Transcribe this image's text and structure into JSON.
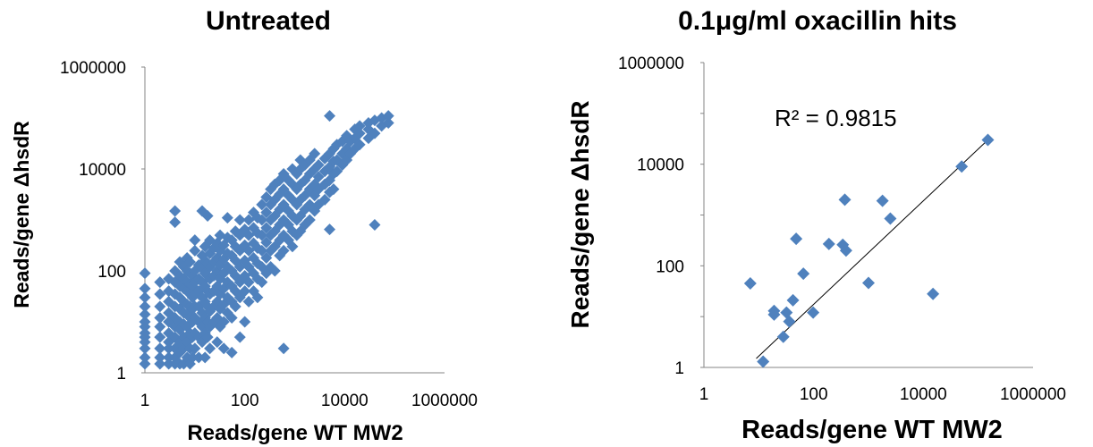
{
  "chart_data": [
    {
      "type": "scatter",
      "title": "Untreated",
      "xlabel": "Reads/gene WT MW2",
      "ylabel": "Reads/gene ΔhsdR",
      "xscale": "log",
      "yscale": "log",
      "xlim": [
        1,
        1000000
      ],
      "ylim": [
        1,
        1000000
      ],
      "xticks": [
        "1",
        "100",
        "10000",
        "1000000"
      ],
      "yticks": [
        "1",
        "100",
        "10000",
        "1000000"
      ],
      "marker": "diamond",
      "color": "#4f81bd",
      "grid": false,
      "annotation": "",
      "points": [
        [
          1,
          1.5
        ],
        [
          1,
          2
        ],
        [
          1,
          3
        ],
        [
          1,
          4
        ],
        [
          1,
          5
        ],
        [
          1,
          6
        ],
        [
          1,
          8
        ],
        [
          1,
          10
        ],
        [
          1,
          14
        ],
        [
          1,
          20
        ],
        [
          1,
          30
        ],
        [
          1,
          45
        ],
        [
          1,
          90
        ],
        [
          2,
          1.5
        ],
        [
          2,
          2
        ],
        [
          2,
          3
        ],
        [
          2,
          5
        ],
        [
          2,
          8
        ],
        [
          2,
          12
        ],
        [
          2,
          20
        ],
        [
          2,
          35
        ],
        [
          2,
          60
        ],
        [
          3,
          1.5
        ],
        [
          3,
          2
        ],
        [
          3,
          3
        ],
        [
          3,
          4
        ],
        [
          3,
          6
        ],
        [
          3,
          10
        ],
        [
          3,
          15
        ],
        [
          3,
          25
        ],
        [
          3,
          40
        ],
        [
          3,
          70
        ],
        [
          4,
          1500
        ],
        [
          4,
          900
        ],
        [
          4,
          1.5
        ],
        [
          4,
          2
        ],
        [
          4,
          3
        ],
        [
          4,
          5
        ],
        [
          4,
          8
        ],
        [
          4,
          12
        ],
        [
          4,
          20
        ],
        [
          4,
          35
        ],
        [
          4,
          60
        ],
        [
          4,
          100
        ],
        [
          5,
          1.5
        ],
        [
          5,
          2.5
        ],
        [
          5,
          4
        ],
        [
          5,
          7
        ],
        [
          5,
          10
        ],
        [
          5,
          18
        ],
        [
          5,
          30
        ],
        [
          5,
          50
        ],
        [
          5,
          80
        ],
        [
          5,
          150
        ],
        [
          6,
          1.5
        ],
        [
          6,
          3
        ],
        [
          6,
          5
        ],
        [
          6,
          9
        ],
        [
          6,
          15
        ],
        [
          6,
          25
        ],
        [
          6,
          45
        ],
        [
          6,
          70
        ],
        [
          6,
          120
        ],
        [
          7,
          2
        ],
        [
          7,
          4
        ],
        [
          7,
          8
        ],
        [
          7,
          14
        ],
        [
          7,
          22
        ],
        [
          7,
          40
        ],
        [
          7,
          60
        ],
        [
          7,
          100
        ],
        [
          7,
          180
        ],
        [
          8,
          1.5
        ],
        [
          8,
          3
        ],
        [
          8,
          6
        ],
        [
          8,
          12
        ],
        [
          8,
          20
        ],
        [
          8,
          35
        ],
        [
          8,
          55
        ],
        [
          8,
          90
        ],
        [
          8,
          150
        ],
        [
          9,
          2
        ],
        [
          9,
          5
        ],
        [
          9,
          10
        ],
        [
          9,
          18
        ],
        [
          9,
          30
        ],
        [
          9,
          50
        ],
        [
          9,
          80
        ],
        [
          10,
          3
        ],
        [
          10,
          6
        ],
        [
          10,
          12
        ],
        [
          10,
          20
        ],
        [
          10,
          35
        ],
        [
          10,
          60
        ],
        [
          10,
          100
        ],
        [
          10,
          250
        ],
        [
          10,
          400
        ],
        [
          12,
          2
        ],
        [
          12,
          5
        ],
        [
          12,
          10
        ],
        [
          12,
          20
        ],
        [
          12,
          40
        ],
        [
          12,
          70
        ],
        [
          12,
          130
        ],
        [
          14,
          1500
        ],
        [
          14,
          4
        ],
        [
          14,
          8
        ],
        [
          14,
          15
        ],
        [
          14,
          30
        ],
        [
          14,
          60
        ],
        [
          14,
          110
        ],
        [
          14,
          200
        ],
        [
          16,
          2
        ],
        [
          16,
          6
        ],
        [
          16,
          12
        ],
        [
          16,
          25
        ],
        [
          16,
          50
        ],
        [
          16,
          90
        ],
        [
          16,
          160
        ],
        [
          16,
          300
        ],
        [
          18,
          1200
        ],
        [
          18,
          5
        ],
        [
          18,
          10
        ],
        [
          18,
          20
        ],
        [
          18,
          40
        ],
        [
          18,
          80
        ],
        [
          18,
          140
        ],
        [
          20,
          3
        ],
        [
          20,
          8
        ],
        [
          20,
          16
        ],
        [
          20,
          35
        ],
        [
          20,
          70
        ],
        [
          20,
          120
        ],
        [
          20,
          220
        ],
        [
          20,
          400
        ],
        [
          24,
          10
        ],
        [
          24,
          20
        ],
        [
          24,
          40
        ],
        [
          24,
          80
        ],
        [
          24,
          150
        ],
        [
          24,
          280
        ],
        [
          28,
          4
        ],
        [
          28,
          12
        ],
        [
          28,
          25
        ],
        [
          28,
          50
        ],
        [
          28,
          100
        ],
        [
          28,
          180
        ],
        [
          28,
          350
        ],
        [
          32,
          8
        ],
        [
          32,
          18
        ],
        [
          32,
          35
        ],
        [
          32,
          70
        ],
        [
          32,
          130
        ],
        [
          32,
          250
        ],
        [
          32,
          500
        ],
        [
          38,
          3
        ],
        [
          38,
          10
        ],
        [
          38,
          22
        ],
        [
          38,
          45
        ],
        [
          38,
          90
        ],
        [
          38,
          170
        ],
        [
          38,
          320
        ],
        [
          45,
          15
        ],
        [
          45,
          30
        ],
        [
          45,
          60
        ],
        [
          45,
          120
        ],
        [
          45,
          220
        ],
        [
          45,
          450
        ],
        [
          45,
          1100
        ],
        [
          55,
          2.5
        ],
        [
          55,
          12
        ],
        [
          55,
          25
        ],
        [
          55,
          50
        ],
        [
          55,
          100
        ],
        [
          55,
          200
        ],
        [
          55,
          400
        ],
        [
          65,
          20
        ],
        [
          65,
          40
        ],
        [
          65,
          80
        ],
        [
          65,
          160
        ],
        [
          65,
          300
        ],
        [
          65,
          600
        ],
        [
          80,
          5
        ],
        [
          80,
          30
        ],
        [
          80,
          60
        ],
        [
          80,
          120
        ],
        [
          80,
          250
        ],
        [
          80,
          500
        ],
        [
          80,
          1000
        ],
        [
          100,
          10
        ],
        [
          100,
          40
        ],
        [
          100,
          80
        ],
        [
          100,
          160
        ],
        [
          100,
          320
        ],
        [
          100,
          650
        ],
        [
          120,
          25
        ],
        [
          120,
          60
        ],
        [
          120,
          120
        ],
        [
          120,
          250
        ],
        [
          120,
          500
        ],
        [
          120,
          1000
        ],
        [
          150,
          40
        ],
        [
          150,
          90
        ],
        [
          150,
          180
        ],
        [
          150,
          350
        ],
        [
          150,
          700
        ],
        [
          150,
          1400
        ],
        [
          180,
          30
        ],
        [
          180,
          70
        ],
        [
          180,
          140
        ],
        [
          180,
          280
        ],
        [
          180,
          550
        ],
        [
          180,
          1100
        ],
        [
          220,
          60
        ],
        [
          220,
          120
        ],
        [
          220,
          250
        ],
        [
          220,
          500
        ],
        [
          220,
          1000
        ],
        [
          220,
          2000
        ],
        [
          270,
          90
        ],
        [
          270,
          180
        ],
        [
          270,
          360
        ],
        [
          270,
          700
        ],
        [
          270,
          1400
        ],
        [
          270,
          2800
        ],
        [
          330,
          120
        ],
        [
          330,
          250
        ],
        [
          330,
          500
        ],
        [
          330,
          1000
        ],
        [
          330,
          2000
        ],
        [
          330,
          4000
        ],
        [
          400,
          100
        ],
        [
          400,
          300
        ],
        [
          400,
          600
        ],
        [
          400,
          1200
        ],
        [
          400,
          2500
        ],
        [
          400,
          5000
        ],
        [
          500,
          200
        ],
        [
          500,
          400
        ],
        [
          500,
          800
        ],
        [
          500,
          1600
        ],
        [
          500,
          3200
        ],
        [
          500,
          6000
        ],
        [
          600,
          3
        ],
        [
          600,
          250
        ],
        [
          600,
          500
        ],
        [
          600,
          1000
        ],
        [
          600,
          2000
        ],
        [
          600,
          4000
        ],
        [
          600,
          8000
        ],
        [
          750,
          400
        ],
        [
          750,
          800
        ],
        [
          750,
          1500
        ],
        [
          750,
          3000
        ],
        [
          750,
          6000
        ],
        [
          900,
          300
        ],
        [
          900,
          600
        ],
        [
          900,
          1200
        ],
        [
          900,
          2500
        ],
        [
          900,
          5000
        ],
        [
          900,
          10000
        ],
        [
          1100,
          500
        ],
        [
          1100,
          1000
        ],
        [
          1100,
          2000
        ],
        [
          1100,
          4000
        ],
        [
          1100,
          8000
        ],
        [
          1300,
          600
        ],
        [
          1300,
          1200
        ],
        [
          1300,
          2500
        ],
        [
          1300,
          5000
        ],
        [
          1300,
          10000
        ],
        [
          1300,
          15000
        ],
        [
          1600,
          800
        ],
        [
          1600,
          1600
        ],
        [
          1600,
          3000
        ],
        [
          1600,
          6000
        ],
        [
          1600,
          12000
        ],
        [
          2000,
          1000
        ],
        [
          2000,
          2000
        ],
        [
          2000,
          4000
        ],
        [
          2000,
          8000
        ],
        [
          2000,
          15000
        ],
        [
          2500,
          1500
        ],
        [
          2500,
          3000
        ],
        [
          2500,
          5000
        ],
        [
          2500,
          10000
        ],
        [
          2500,
          20000
        ],
        [
          3000,
          2000
        ],
        [
          3000,
          4000
        ],
        [
          3000,
          7000
        ],
        [
          3000,
          12000
        ],
        [
          4000,
          2500
        ],
        [
          4000,
          5000
        ],
        [
          4000,
          9000
        ],
        [
          4000,
          16000
        ],
        [
          5000,
          650
        ],
        [
          5000,
          3500
        ],
        [
          5000,
          6000
        ],
        [
          5000,
          11000
        ],
        [
          5000,
          20000
        ],
        [
          6000,
          4000
        ],
        [
          6000,
          8000
        ],
        [
          6000,
          14000
        ],
        [
          6000,
          25000
        ],
        [
          5000,
          110000
        ],
        [
          7000,
          9000
        ],
        [
          7000,
          15000
        ],
        [
          7000,
          30000
        ],
        [
          9000,
          12000
        ],
        [
          9000,
          20000
        ],
        [
          9000,
          35000
        ],
        [
          11000,
          15000
        ],
        [
          11000,
          25000
        ],
        [
          11000,
          45000
        ],
        [
          13000,
          20000
        ],
        [
          13000,
          35000
        ],
        [
          16000,
          25000
        ],
        [
          16000,
          40000
        ],
        [
          16000,
          60000
        ],
        [
          20000,
          30000
        ],
        [
          20000,
          50000
        ],
        [
          20000,
          70000
        ],
        [
          30000,
          40000
        ],
        [
          30000,
          60000
        ],
        [
          30000,
          80000
        ],
        [
          40000,
          800
        ],
        [
          40000,
          50000
        ],
        [
          40000,
          90000
        ],
        [
          55000,
          70000
        ],
        [
          55000,
          100000
        ],
        [
          75000,
          80000
        ],
        [
          75000,
          110000
        ]
      ]
    },
    {
      "type": "scatter",
      "title": "0.1μg/ml oxacillin hits",
      "xlabel": "Reads/gene WT MW2",
      "ylabel": "Reads/gene ΔhsdR",
      "xscale": "log",
      "yscale": "log",
      "xlim": [
        1,
        1000000
      ],
      "ylim": [
        1,
        1000000
      ],
      "xticks": [
        "1",
        "100",
        "10000",
        "1000000"
      ],
      "yticks": [
        "1",
        "10",
        "100",
        "1000",
        "10000",
        "100000",
        "1000000"
      ],
      "ytick_labels_shown": [
        "1",
        "100",
        "10000",
        "1000000"
      ],
      "marker": "diamond",
      "color": "#4f81bd",
      "grid": false,
      "annotation": "R² = 0.9815",
      "trendline": {
        "type": "linear",
        "x": [
          9,
          150000
        ],
        "y": [
          1.5,
          30000
        ]
      },
      "points": [
        [
          7,
          45
        ],
        [
          12,
          1.3
        ],
        [
          19,
          13
        ],
        [
          19,
          11
        ],
        [
          28,
          4
        ],
        [
          32,
          12
        ],
        [
          36,
          8
        ],
        [
          42,
          21
        ],
        [
          48,
          340
        ],
        [
          65,
          70
        ],
        [
          98,
          12
        ],
        [
          190,
          270
        ],
        [
          340,
          260
        ],
        [
          370,
          2000
        ],
        [
          390,
          200
        ],
        [
          1000,
          46
        ],
        [
          1800,
          1900
        ],
        [
          2500,
          850
        ],
        [
          15000,
          28
        ],
        [
          50000,
          9000
        ],
        [
          150000,
          30000
        ]
      ]
    }
  ]
}
